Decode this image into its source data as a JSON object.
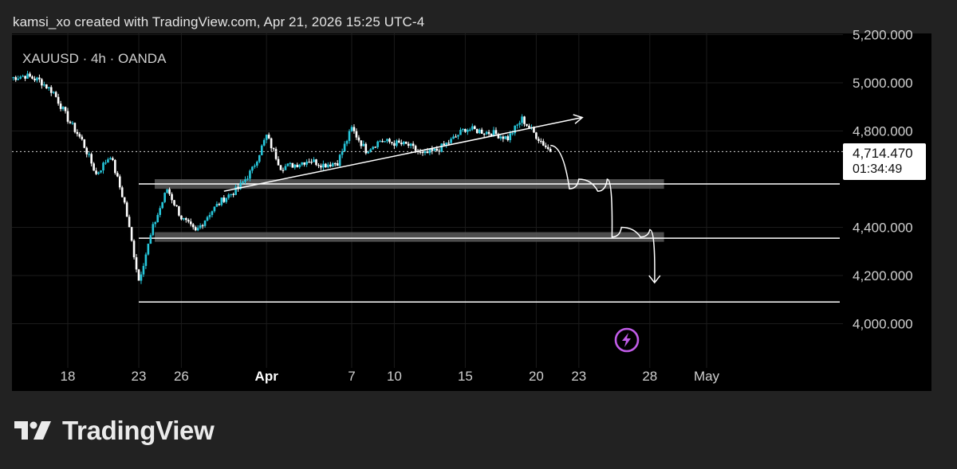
{
  "header": {
    "attribution": "kamsi_xo created with TradingView.com, Apr 21, 2026 15:25 UTC-4"
  },
  "chart": {
    "symbol_label": "XAUUSD · 4h · OANDA"
  },
  "price_marker": {
    "price": "4,714.470",
    "countdown": "01:34:49"
  },
  "brand": {
    "name": "TradingView"
  },
  "colors": {
    "background": "#222222",
    "chart_background": "#000000",
    "candle_up": "#26c6da",
    "candle_down": "#ffffff",
    "zone": "#5a5a5a",
    "line": "#ffffff",
    "flash_icon": "#c15ce8"
  },
  "chart_data": {
    "type": "candlestick",
    "symbol": "XAUUSD",
    "timeframe": "4h",
    "source": "OANDA",
    "y_ticks": [
      "4,000.000",
      "4,200.000",
      "4,400.000",
      "4,800.000",
      "5,000.000",
      "5,200.000"
    ],
    "x_ticks": [
      "18",
      "23",
      "26",
      "Apr",
      "7",
      "10",
      "15",
      "20",
      "23",
      "28",
      "May"
    ],
    "x_tick_bold": "Apr",
    "ylim": [
      3850,
      5200
    ],
    "current_price": 4714.47,
    "grid": true,
    "key_levels": [
      {
        "kind": "zone",
        "from": "Mar 23",
        "to": "Apr 29",
        "low": 4560,
        "high": 4600
      },
      {
        "kind": "zone",
        "from": "Mar 23",
        "to": "Apr 29",
        "low": 4340,
        "high": 4380
      },
      {
        "kind": "line",
        "price": 4580,
        "from": "Mar 23"
      },
      {
        "kind": "line",
        "price": 4355,
        "from": "Mar 23"
      },
      {
        "kind": "line",
        "price": 4090,
        "from": "Mar 23"
      }
    ],
    "trendline": {
      "start": [
        "Mar 29",
        4550
      ],
      "end": [
        "Apr 21",
        4790
      ]
    },
    "projection": [
      [
        "Apr 21",
        4740
      ],
      [
        "Apr 22",
        4560
      ],
      [
        "Apr 23",
        4600
      ],
      [
        "Apr 24",
        4550
      ],
      [
        "Apr 25",
        4600
      ],
      [
        "Apr 25",
        4360
      ],
      [
        "Apr 26",
        4400
      ],
      [
        "Apr 27",
        4360
      ],
      [
        "Apr 28",
        4390
      ],
      [
        "Apr 28",
        4170
      ]
    ],
    "price_path": [
      [
        "Mar 14",
        5020
      ],
      [
        "Mar 15",
        5030
      ],
      [
        "Mar 16",
        5010
      ],
      [
        "Mar 17",
        4960
      ],
      [
        "Mar 18",
        4850
      ],
      [
        "Mar 19",
        4760
      ],
      [
        "Mar 20",
        4620
      ],
      [
        "Mar 21",
        4700
      ],
      [
        "Mar 22",
        4500
      ],
      [
        "Mar 23",
        4180
      ],
      [
        "Mar 24",
        4400
      ],
      [
        "Mar 25",
        4560
      ],
      [
        "Mar 26",
        4440
      ],
      [
        "Mar 27",
        4380
      ],
      [
        "Mar 28",
        4460
      ],
      [
        "Mar 29",
        4520
      ],
      [
        "Mar 30",
        4560
      ],
      [
        "Mar 31",
        4640
      ],
      [
        "Apr 1",
        4780
      ],
      [
        "Apr 2",
        4650
      ],
      [
        "Apr 3",
        4660
      ],
      [
        "Apr 4",
        4680
      ],
      [
        "Apr 5",
        4660
      ],
      [
        "Apr 6",
        4670
      ],
      [
        "Apr 7",
        4810
      ],
      [
        "Apr 8",
        4720
      ],
      [
        "Apr 9",
        4760
      ],
      [
        "Apr 10",
        4750
      ],
      [
        "Apr 11",
        4740
      ],
      [
        "Apr 12",
        4700
      ],
      [
        "Apr 13",
        4720
      ],
      [
        "Apr 14",
        4760
      ],
      [
        "Apr 15",
        4810
      ],
      [
        "Apr 16",
        4800
      ],
      [
        "Apr 17",
        4790
      ],
      [
        "Apr 18",
        4770
      ],
      [
        "Apr 19",
        4850
      ],
      [
        "Apr 20",
        4780
      ],
      [
        "Apr 21",
        4714
      ]
    ]
  }
}
